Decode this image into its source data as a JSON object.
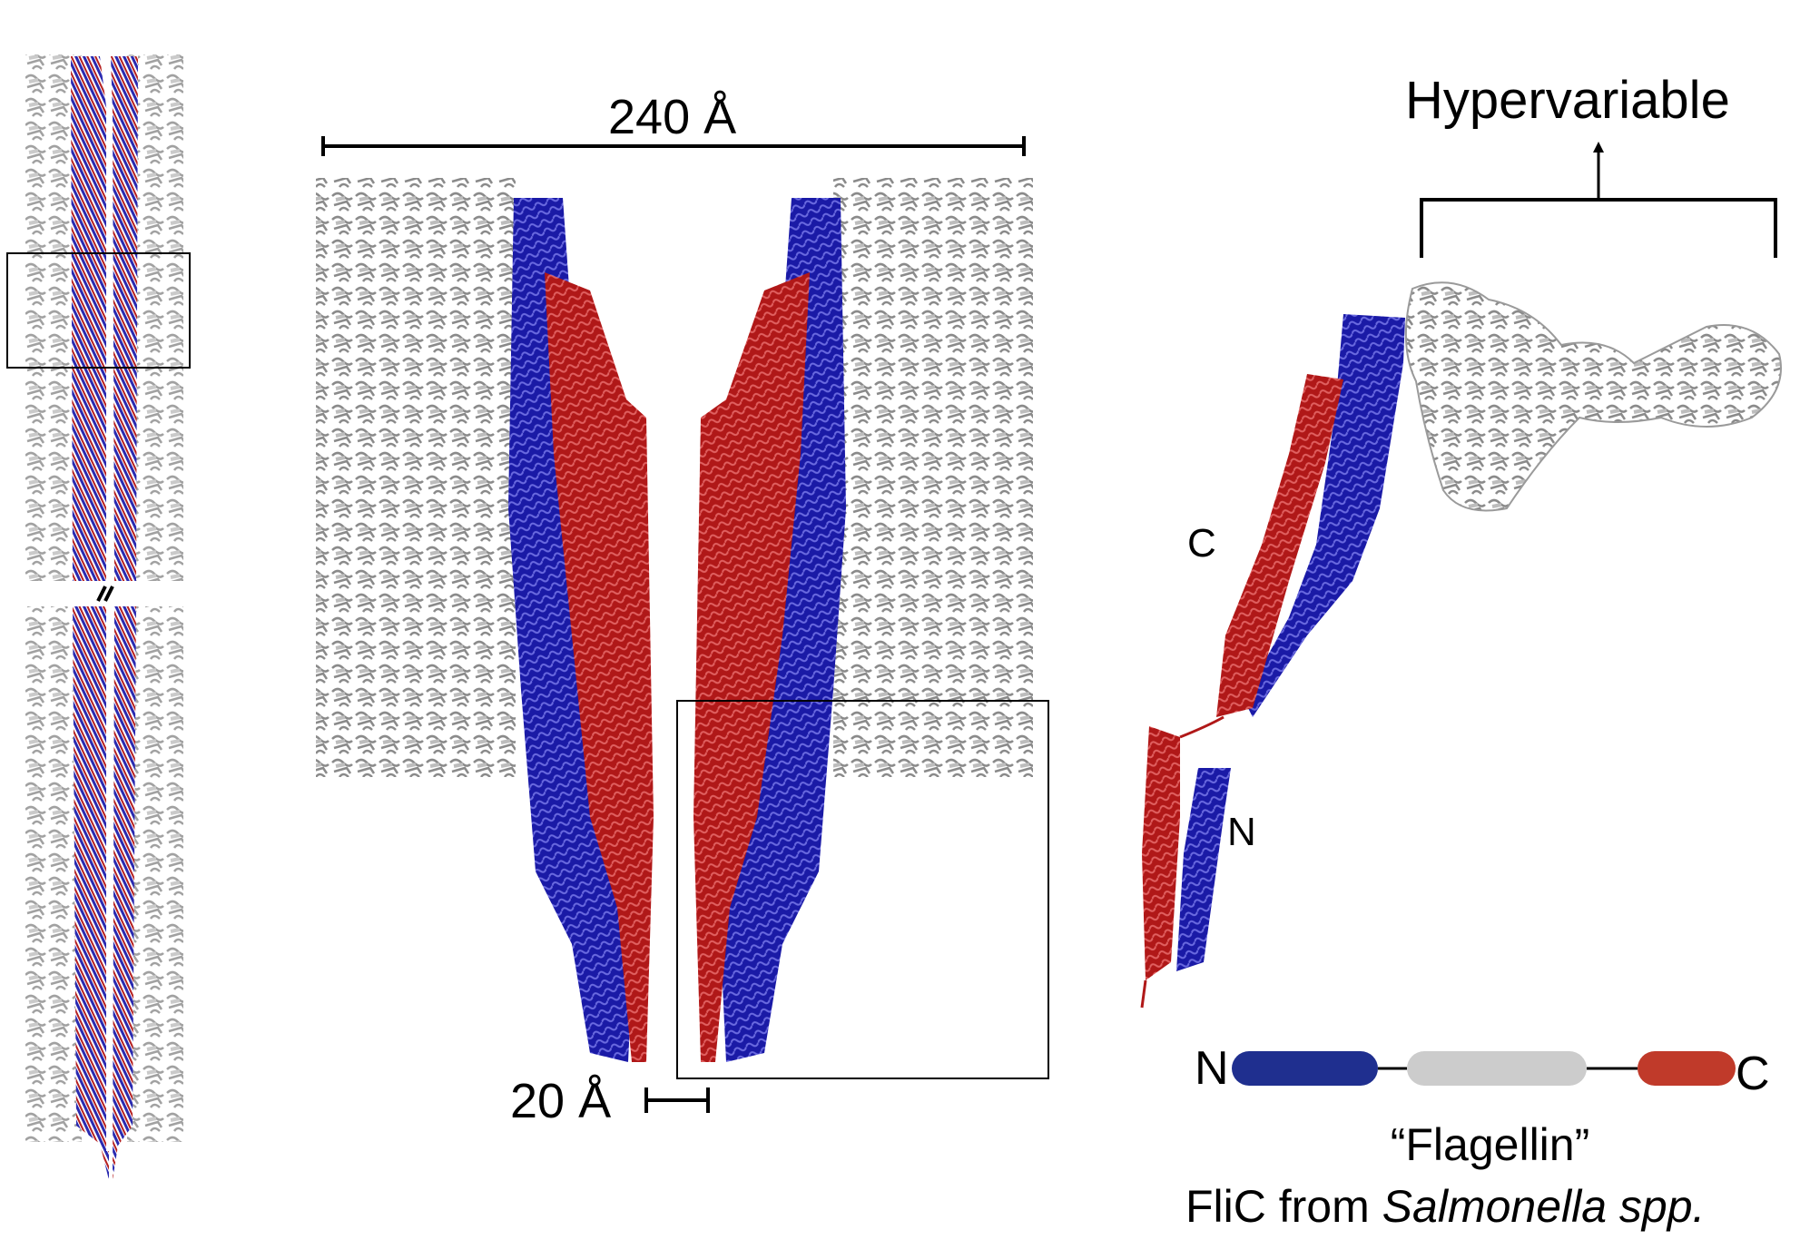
{
  "labels": {
    "hypervariable": "Hypervariable",
    "width_240": "240 Å",
    "width_20": "20 Å",
    "c_terminus": "C",
    "n_terminus": "N",
    "bar_n": "N",
    "bar_c": "C",
    "caption_line1": "“Flagellin”",
    "caption_line2_prefix": "FliC from ",
    "caption_line2_species": "Salmonella spp."
  },
  "colors": {
    "n_domain": "#1a1aa6",
    "c_domain": "#b01818",
    "hypervariable_domain": "#c8c8c8",
    "bar_n": "#1f2f8f",
    "bar_middle": "#cccccc",
    "bar_c": "#c03a2a",
    "line": "#000000"
  },
  "icons": {
    "axis_break": "double-slash-break-icon"
  }
}
